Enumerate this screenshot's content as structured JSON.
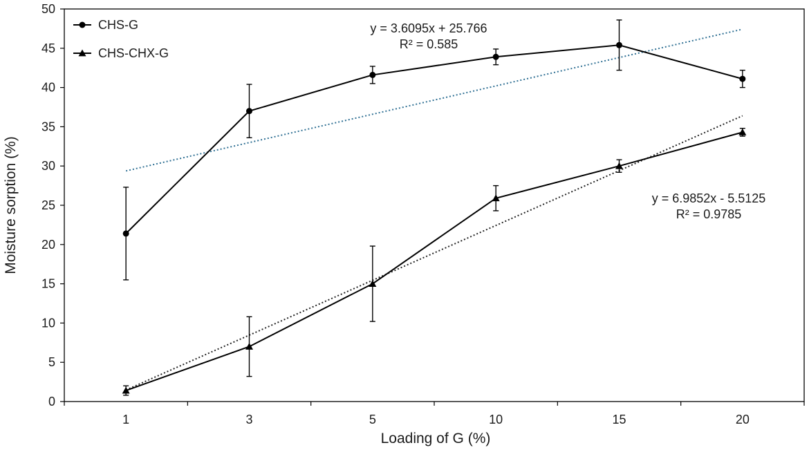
{
  "chart_data": {
    "type": "line",
    "xlabel": "Loading of G (%)",
    "ylabel": "Moisture sorption (%)",
    "categories": [
      "1",
      "3",
      "5",
      "10",
      "15",
      "20"
    ],
    "ylim": [
      0,
      50
    ],
    "yticks": [
      0,
      5,
      10,
      15,
      20,
      25,
      30,
      35,
      40,
      45,
      50
    ],
    "grid": false,
    "legend_position": "top-left",
    "series": [
      {
        "name": "CHS-G",
        "marker": "circle",
        "values": [
          21.4,
          37.0,
          41.6,
          43.9,
          45.4,
          41.1
        ],
        "errors": [
          5.9,
          3.4,
          1.1,
          1.0,
          3.2,
          1.1
        ],
        "trendline": {
          "slope": 3.6095,
          "intercept": 25.766,
          "color": "#2e6f93"
        }
      },
      {
        "name": "CHS-CHX-G",
        "marker": "triangle",
        "values": [
          1.4,
          7.0,
          15.0,
          25.9,
          30.0,
          34.3
        ],
        "errors": [
          0.6,
          3.8,
          4.8,
          1.6,
          0.8,
          0.5
        ],
        "trendline": {
          "slope": 6.9852,
          "intercept": -5.5125,
          "color": "#222222"
        }
      }
    ],
    "annotations": [
      {
        "id": "chsg-eq",
        "line1": "y = 3.6095x + 25.766",
        "line2": "R² = 0.585"
      },
      {
        "id": "chx-eq",
        "line1": "y = 6.9852x - 5.5125",
        "line2": "R² = 0.9785"
      }
    ]
  }
}
